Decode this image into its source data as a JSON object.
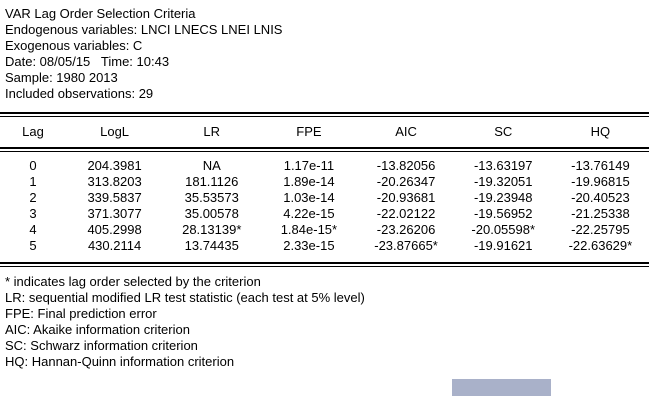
{
  "header": {
    "title": "VAR Lag Order Selection Criteria",
    "lines": [
      "Endogenous variables: LNCI LNECS LNEI LNIS",
      "Exogenous variables: C",
      "Date: 08/05/15   Time: 10:43",
      "Sample: 1980 2013",
      "Included observations: 29"
    ]
  },
  "table": {
    "columns": [
      "Lag",
      "LogL",
      "LR",
      "FPE",
      "AIC",
      "SC",
      "HQ"
    ],
    "rows": [
      [
        "0",
        "204.3981",
        "NA",
        "1.17e-11",
        "-13.82056",
        "-13.63197",
        "-13.76149"
      ],
      [
        "1",
        "313.8203",
        "181.1126",
        "1.89e-14",
        "-20.26347",
        "-19.32051",
        "-19.96815"
      ],
      [
        "2",
        "339.5837",
        "35.53573",
        "1.03e-14",
        "-20.93681",
        "-19.23948",
        "-20.40523"
      ],
      [
        "3",
        "371.3077",
        "35.00578",
        "4.22e-15",
        "-22.02122",
        "-19.56952",
        "-21.25338"
      ],
      [
        "4",
        "405.2998",
        "28.13139*",
        "1.84e-15*",
        "-23.26206",
        "-20.05598*",
        "-22.25795"
      ],
      [
        "5",
        "430.2114",
        "13.74435",
        "2.33e-15",
        "-23.87665*",
        "-19.91621",
        "-22.63629*"
      ]
    ]
  },
  "notes": [
    "* indicates lag order selected by the criterion",
    "LR: sequential modified LR test statistic (each test at 5% level)",
    "FPE: Final prediction error",
    "AIC: Akaike information criterion",
    "SC: Schwarz information criterion",
    "HQ: Hannan-Quinn information criterion"
  ],
  "colors": {
    "highlight": "#a9b1c9",
    "text": "#000000",
    "background": "#ffffff"
  }
}
